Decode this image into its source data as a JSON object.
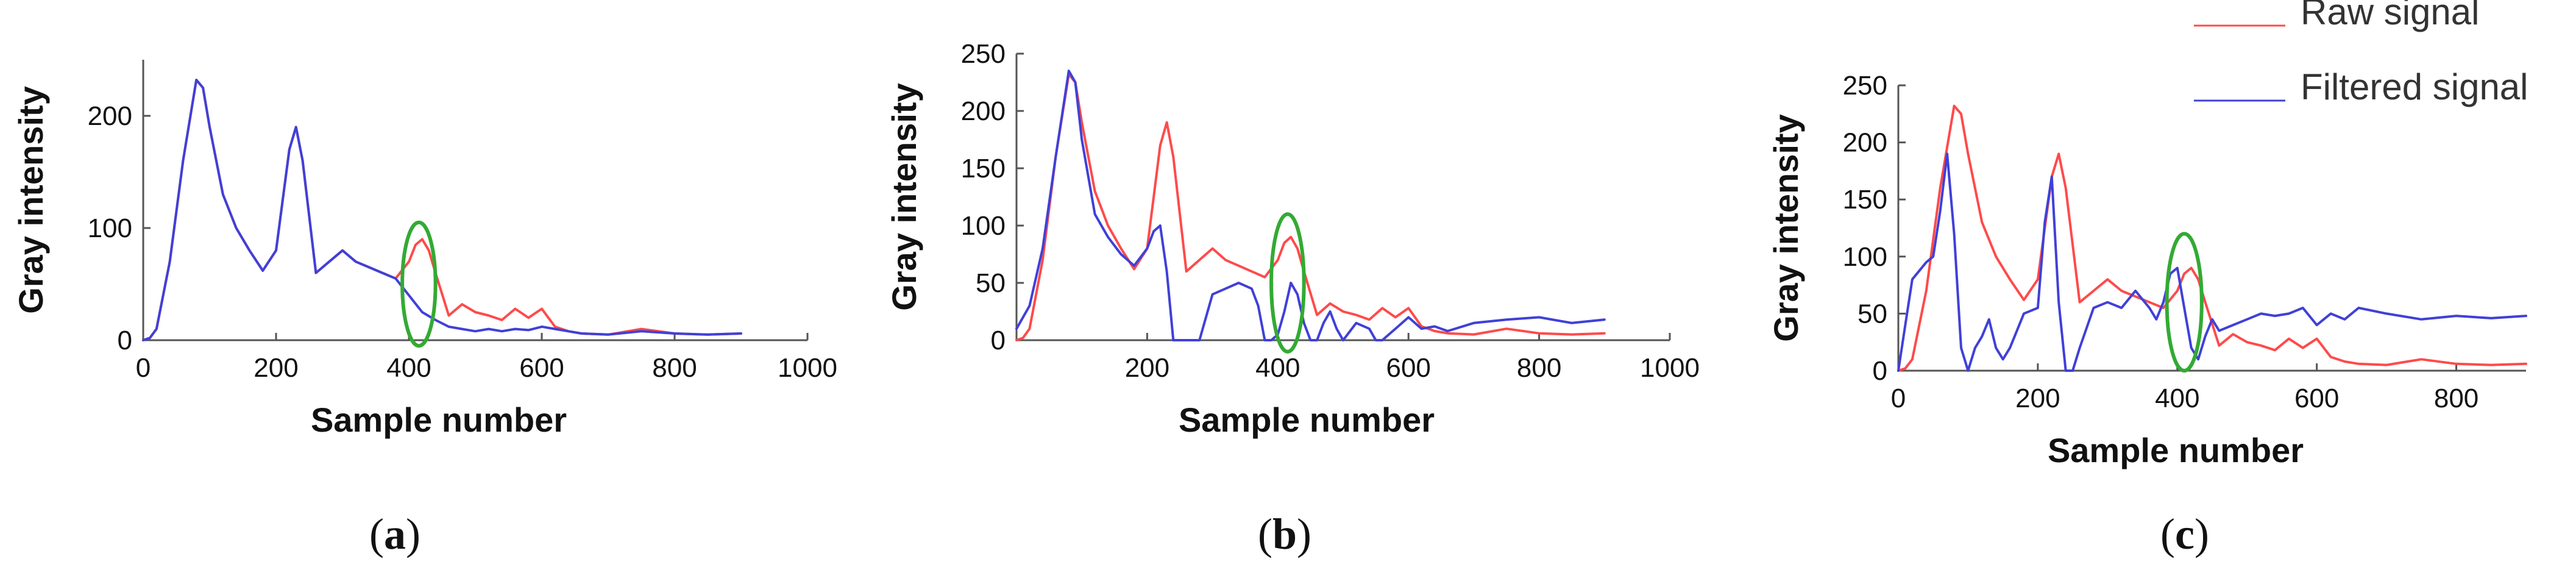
{
  "figure": {
    "panel_labels": [
      "a",
      "b",
      "c"
    ]
  },
  "chart_data": [
    {
      "panel": "a",
      "type": "line",
      "title": "",
      "xlabel": "Sample number",
      "ylabel": "Gray intensity",
      "xlim": [
        0,
        1000
      ],
      "ylim": [
        0,
        250
      ],
      "xticks": [
        0,
        200,
        400,
        600,
        800,
        1000
      ],
      "yticks": [
        0,
        100,
        200
      ],
      "grid": false,
      "legend": "none",
      "highlight_ellipse": {
        "cx": 415,
        "cy": 50,
        "rx": 25,
        "ry": 55,
        "color": "#33aa33"
      },
      "series": [
        {
          "color": "#ff4a4a",
          "x": [
            0,
            10,
            20,
            40,
            60,
            80,
            90,
            100,
            120,
            140,
            160,
            180,
            200,
            220,
            230,
            240,
            260,
            280,
            300,
            320,
            340,
            360,
            380,
            400,
            410,
            420,
            430,
            440,
            460,
            480,
            500,
            520,
            540,
            560,
            580,
            600,
            620,
            640,
            660,
            700,
            750,
            800,
            850,
            900
          ],
          "y": [
            0,
            2,
            10,
            70,
            160,
            232,
            225,
            190,
            130,
            100,
            80,
            62,
            80,
            170,
            190,
            160,
            60,
            70,
            80,
            70,
            65,
            60,
            55,
            70,
            85,
            90,
            80,
            60,
            22,
            32,
            25,
            22,
            18,
            28,
            20,
            28,
            12,
            8,
            6,
            5,
            10,
            6,
            5,
            6
          ]
        },
        {
          "color": "#4040d8",
          "x": [
            0,
            10,
            20,
            40,
            60,
            80,
            90,
            100,
            120,
            140,
            160,
            180,
            200,
            220,
            230,
            240,
            260,
            280,
            300,
            320,
            340,
            360,
            380,
            400,
            420,
            440,
            460,
            480,
            500,
            520,
            540,
            560,
            580,
            600,
            620,
            640,
            660,
            700,
            750,
            800,
            850,
            900
          ],
          "y": [
            0,
            2,
            10,
            70,
            160,
            232,
            225,
            190,
            130,
            100,
            80,
            62,
            80,
            170,
            190,
            160,
            60,
            70,
            80,
            70,
            65,
            60,
            55,
            40,
            25,
            18,
            12,
            10,
            8,
            10,
            8,
            10,
            9,
            12,
            10,
            8,
            6,
            5,
            8,
            6,
            5,
            6
          ]
        }
      ]
    },
    {
      "panel": "b",
      "type": "line",
      "title": "",
      "xlabel": "Sample number",
      "ylabel": "Gray intensity",
      "xlim": [
        0,
        1000
      ],
      "ylim": [
        0,
        250
      ],
      "xticks": [
        200,
        400,
        600,
        800,
        1000
      ],
      "yticks": [
        0,
        50,
        100,
        150,
        200,
        250
      ],
      "grid": false,
      "legend": "none",
      "highlight_ellipse": {
        "cx": 415,
        "cy": 50,
        "rx": 25,
        "ry": 60,
        "color": "#33aa33"
      },
      "series": [
        {
          "color": "#ff4a4a",
          "x": [
            0,
            10,
            20,
            40,
            60,
            80,
            90,
            100,
            120,
            140,
            160,
            180,
            200,
            220,
            230,
            240,
            260,
            280,
            300,
            320,
            340,
            360,
            380,
            400,
            410,
            420,
            430,
            440,
            460,
            480,
            500,
            520,
            540,
            560,
            580,
            600,
            620,
            640,
            660,
            700,
            750,
            800,
            850,
            900
          ],
          "y": [
            0,
            2,
            10,
            70,
            160,
            232,
            225,
            190,
            130,
            100,
            80,
            62,
            80,
            170,
            190,
            160,
            60,
            70,
            80,
            70,
            65,
            60,
            55,
            70,
            85,
            90,
            80,
            60,
            22,
            32,
            25,
            22,
            18,
            28,
            20,
            28,
            12,
            8,
            6,
            5,
            10,
            6,
            5,
            6
          ]
        },
        {
          "color": "#4040d8",
          "x": [
            0,
            10,
            20,
            40,
            60,
            80,
            90,
            100,
            120,
            140,
            160,
            180,
            200,
            210,
            220,
            230,
            240,
            250,
            260,
            270,
            280,
            290,
            300,
            320,
            340,
            360,
            370,
            380,
            390,
            400,
            410,
            420,
            430,
            440,
            450,
            460,
            470,
            480,
            490,
            500,
            520,
            540,
            550,
            560,
            580,
            600,
            620,
            640,
            660,
            700,
            750,
            800,
            850,
            900
          ],
          "y": [
            10,
            20,
            30,
            80,
            160,
            235,
            225,
            175,
            110,
            90,
            75,
            65,
            80,
            95,
            100,
            60,
            0,
            0,
            0,
            0,
            0,
            20,
            40,
            45,
            50,
            45,
            30,
            0,
            0,
            5,
            25,
            50,
            40,
            15,
            0,
            0,
            15,
            25,
            10,
            0,
            15,
            10,
            0,
            0,
            10,
            20,
            10,
            12,
            8,
            15,
            18,
            20,
            15,
            18
          ]
        }
      ]
    },
    {
      "panel": "c",
      "type": "line",
      "title": "",
      "xlabel": "Sample number",
      "ylabel": "Gray intensity",
      "xlim": [
        0,
        900
      ],
      "ylim": [
        0,
        250
      ],
      "xticks": [
        0,
        200,
        400,
        600,
        800
      ],
      "yticks": [
        0,
        50,
        100,
        150,
        200,
        250
      ],
      "grid": false,
      "legend": "top-right",
      "highlight_ellipse": {
        "cx": 410,
        "cy": 60,
        "rx": 25,
        "ry": 60,
        "color": "#33aa33"
      },
      "series": [
        {
          "name": "Raw signal",
          "color": "#ff4a4a",
          "x": [
            0,
            10,
            20,
            40,
            60,
            80,
            90,
            100,
            120,
            140,
            160,
            180,
            200,
            220,
            230,
            240,
            260,
            280,
            300,
            320,
            340,
            360,
            380,
            400,
            410,
            420,
            430,
            440,
            460,
            480,
            500,
            520,
            540,
            560,
            580,
            600,
            620,
            640,
            660,
            700,
            750,
            800,
            850,
            900
          ],
          "y": [
            0,
            2,
            10,
            70,
            160,
            232,
            225,
            190,
            130,
            100,
            80,
            62,
            80,
            170,
            190,
            160,
            60,
            70,
            80,
            70,
            65,
            60,
            55,
            70,
            85,
            90,
            80,
            60,
            22,
            32,
            25,
            22,
            18,
            28,
            20,
            28,
            12,
            8,
            6,
            5,
            10,
            6,
            5,
            6
          ]
        },
        {
          "name": "Filtered signal",
          "color": "#4040d8",
          "x": [
            0,
            10,
            20,
            40,
            50,
            60,
            70,
            80,
            90,
            100,
            110,
            120,
            130,
            140,
            150,
            160,
            180,
            200,
            210,
            220,
            230,
            240,
            250,
            260,
            280,
            300,
            320,
            340,
            360,
            370,
            380,
            390,
            400,
            410,
            420,
            430,
            440,
            450,
            460,
            480,
            500,
            520,
            540,
            560,
            580,
            600,
            620,
            640,
            660,
            700,
            750,
            800,
            850,
            900
          ],
          "y": [
            0,
            40,
            80,
            95,
            100,
            140,
            190,
            120,
            20,
            0,
            20,
            30,
            45,
            20,
            10,
            20,
            50,
            55,
            130,
            170,
            60,
            0,
            0,
            20,
            55,
            60,
            55,
            70,
            55,
            45,
            60,
            85,
            90,
            55,
            20,
            10,
            30,
            45,
            35,
            40,
            45,
            50,
            48,
            50,
            55,
            40,
            50,
            45,
            55,
            50,
            45,
            48,
            46,
            48
          ]
        }
      ]
    }
  ]
}
